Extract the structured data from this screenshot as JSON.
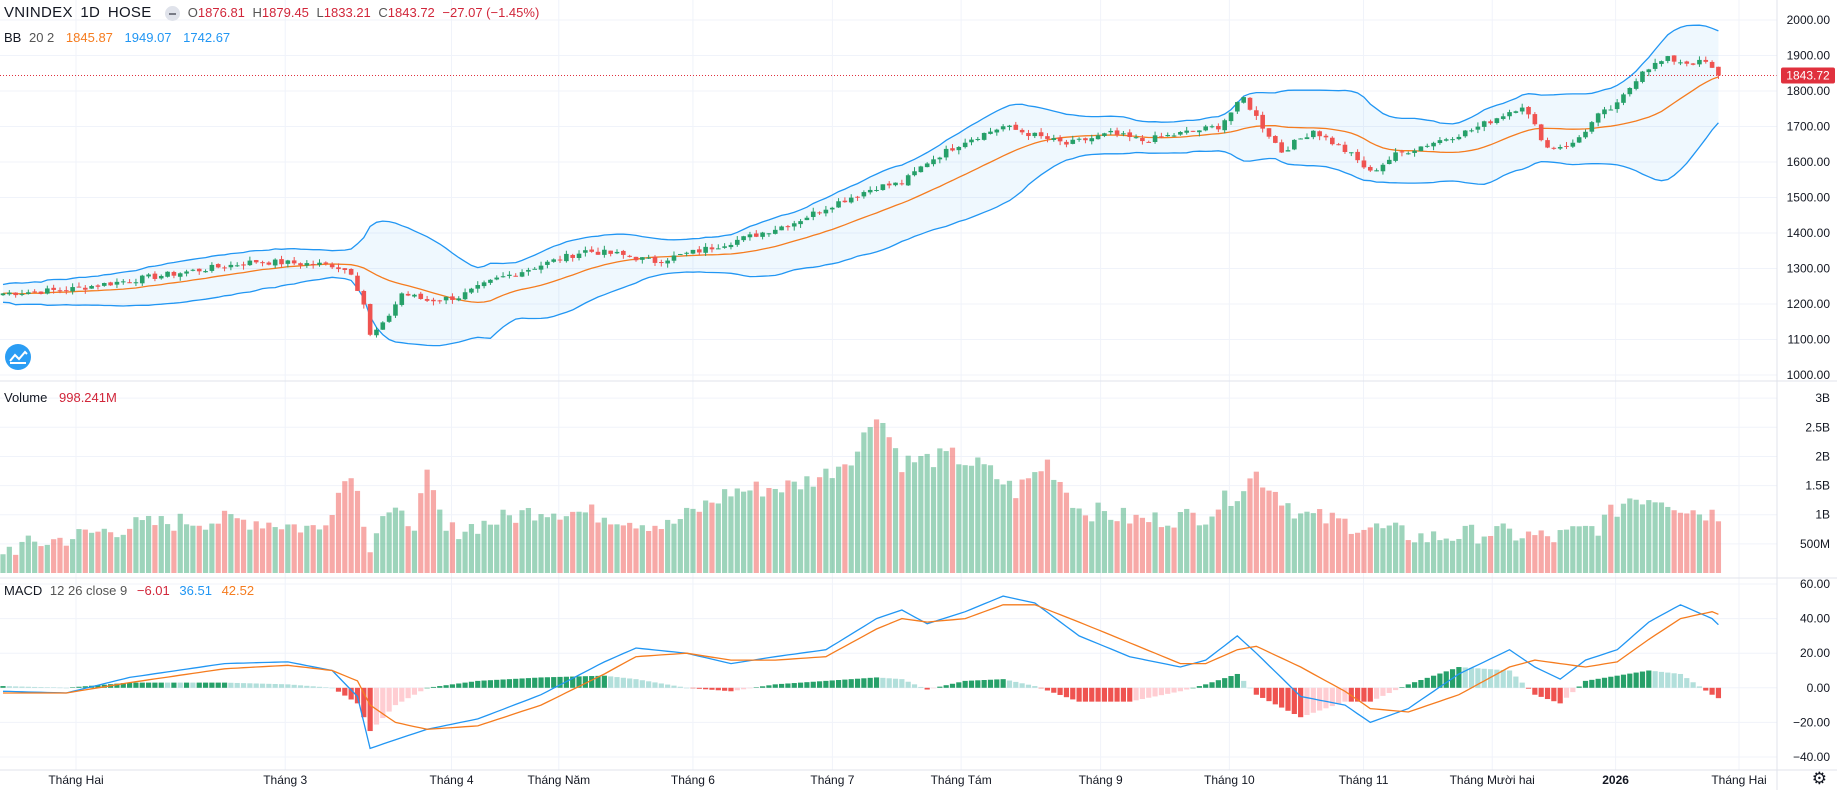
{
  "header": {
    "symbol": "VNINDEX",
    "interval": "1D",
    "exchange": "HOSE",
    "open_label": "O",
    "open": "1876.81",
    "high_label": "H",
    "high": "1879.45",
    "low_label": "L",
    "low": "1833.21",
    "close_label": "C",
    "close": "1843.72",
    "change": "−27.07 (−1.45%)"
  },
  "bb_legend": {
    "name": "BB",
    "params": "20 2",
    "basis": "1845.87",
    "upper": "1949.07",
    "lower": "1742.67"
  },
  "volume_legend": {
    "name": "Volume",
    "value": "998.241M"
  },
  "macd_legend": {
    "name": "MACD",
    "params": "12 26 close 9",
    "hist": "−6.01",
    "macd": "36.51",
    "signal": "42.52"
  },
  "price_tag": "1843.72",
  "colors": {
    "up": "#26a069",
    "down": "#ef5350",
    "bb_band": "#2196f3",
    "bb_basis": "#f57c1f",
    "macd": "#2196f3",
    "signal": "#f57c1f",
    "tag": "#e0313e"
  },
  "chart_data": {
    "type": "candlestick",
    "x_tick_labels": [
      "Tháng Hai",
      "Tháng 3",
      "Tháng 4",
      "Tháng Năm",
      "Tháng 6",
      "Tháng 7",
      "Tháng Tám",
      "Tháng 9",
      "Tháng 10",
      "Tháng 11",
      "Tháng Mười hai",
      "2026",
      "Tháng Hai"
    ],
    "price_axis": {
      "ticks": [
        "1000.00",
        "1100.00",
        "1200.00",
        "1300.00",
        "1400.00",
        "1500.00",
        "1600.00",
        "1700.00",
        "1800.00",
        "1900.00",
        "2000.00"
      ],
      "range": [
        1000,
        2000
      ]
    },
    "volume_axis": {
      "ticks": [
        "500M",
        "1B",
        "1.5B",
        "2B",
        "2.5B",
        "3B"
      ],
      "range": [
        0,
        3
      ]
    },
    "macd_axis": {
      "ticks": [
        "−40.00",
        "−20.00",
        "0.00",
        "20.00",
        "40.00",
        "60.00"
      ],
      "range": [
        -40,
        60
      ]
    },
    "price_keypoints": [
      [
        0,
        1230
      ],
      [
        10,
        1240
      ],
      [
        25,
        1280
      ],
      [
        40,
        1320
      ],
      [
        52,
        1310
      ],
      [
        55,
        1290
      ],
      [
        57,
        1200
      ],
      [
        58,
        1110
      ],
      [
        60,
        1140
      ],
      [
        63,
        1230
      ],
      [
        67,
        1210
      ],
      [
        72,
        1220
      ],
      [
        78,
        1270
      ],
      [
        85,
        1310
      ],
      [
        92,
        1350
      ],
      [
        97,
        1340
      ],
      [
        103,
        1320
      ],
      [
        110,
        1350
      ],
      [
        118,
        1390
      ],
      [
        125,
        1430
      ],
      [
        131,
        1480
      ],
      [
        138,
        1530
      ],
      [
        142,
        1540
      ],
      [
        146,
        1600
      ],
      [
        152,
        1660
      ],
      [
        158,
        1700
      ],
      [
        162,
        1680
      ],
      [
        168,
        1650
      ],
      [
        175,
        1680
      ],
      [
        180,
        1660
      ],
      [
        186,
        1680
      ],
      [
        192,
        1700
      ],
      [
        196,
        1780
      ],
      [
        199,
        1700
      ],
      [
        202,
        1630
      ],
      [
        207,
        1690
      ],
      [
        213,
        1620
      ],
      [
        216,
        1570
      ],
      [
        220,
        1620
      ],
      [
        225,
        1650
      ],
      [
        232,
        1690
      ],
      [
        240,
        1760
      ],
      [
        244,
        1640
      ],
      [
        248,
        1650
      ],
      [
        252,
        1730
      ],
      [
        255,
        1760
      ],
      [
        259,
        1860
      ],
      [
        263,
        1890
      ],
      [
        266,
        1880
      ],
      [
        269,
        1880
      ],
      [
        271,
        1840
      ]
    ],
    "volume_keypoints_B": [
      [
        0,
        0.4
      ],
      [
        10,
        0.6
      ],
      [
        20,
        0.8
      ],
      [
        30,
        0.9
      ],
      [
        40,
        0.9
      ],
      [
        50,
        0.75
      ],
      [
        55,
        1.8
      ],
      [
        58,
        0.5
      ],
      [
        60,
        1.0
      ],
      [
        65,
        0.9
      ],
      [
        67,
        1.6
      ],
      [
        70,
        0.7
      ],
      [
        78,
        0.9
      ],
      [
        85,
        1.1
      ],
      [
        95,
        1.0
      ],
      [
        105,
        0.8
      ],
      [
        115,
        1.4
      ],
      [
        125,
        1.5
      ],
      [
        130,
        1.7
      ],
      [
        135,
        2.1
      ],
      [
        138,
        2.8
      ],
      [
        142,
        1.9
      ],
      [
        150,
        2.0
      ],
      [
        155,
        1.8
      ],
      [
        160,
        1.4
      ],
      [
        165,
        1.9
      ],
      [
        170,
        1.1
      ],
      [
        180,
        0.9
      ],
      [
        190,
        1.0
      ],
      [
        195,
        1.4
      ],
      [
        198,
        1.7
      ],
      [
        205,
        1.0
      ],
      [
        215,
        0.8
      ],
      [
        225,
        0.6
      ],
      [
        235,
        0.7
      ],
      [
        245,
        0.6
      ],
      [
        252,
        0.8
      ],
      [
        257,
        1.3
      ],
      [
        262,
        1.3
      ],
      [
        266,
        1.1
      ],
      [
        271,
        1.0
      ]
    ],
    "macd_keypoints": [
      [
        0,
        -2
      ],
      [
        10,
        -3
      ],
      [
        20,
        6
      ],
      [
        35,
        14
      ],
      [
        45,
        15
      ],
      [
        52,
        10
      ],
      [
        56,
        -5
      ],
      [
        58,
        -35
      ],
      [
        62,
        -30
      ],
      [
        67,
        -24
      ],
      [
        75,
        -18
      ],
      [
        85,
        -4
      ],
      [
        95,
        15
      ],
      [
        100,
        23
      ],
      [
        108,
        20
      ],
      [
        115,
        14
      ],
      [
        122,
        18
      ],
      [
        130,
        22
      ],
      [
        138,
        40
      ],
      [
        142,
        45
      ],
      [
        146,
        37
      ],
      [
        152,
        44
      ],
      [
        158,
        53
      ],
      [
        163,
        49
      ],
      [
        170,
        30
      ],
      [
        178,
        18
      ],
      [
        186,
        12
      ],
      [
        190,
        16
      ],
      [
        195,
        30
      ],
      [
        198,
        20
      ],
      [
        205,
        -5
      ],
      [
        212,
        -10
      ],
      [
        216,
        -20
      ],
      [
        222,
        -12
      ],
      [
        230,
        8
      ],
      [
        238,
        22
      ],
      [
        242,
        12
      ],
      [
        246,
        5
      ],
      [
        250,
        16
      ],
      [
        255,
        22
      ],
      [
        260,
        38
      ],
      [
        265,
        48
      ],
      [
        270,
        40
      ],
      [
        271,
        36.5
      ]
    ],
    "signal_keypoints": [
      [
        0,
        -3
      ],
      [
        10,
        -3
      ],
      [
        20,
        3
      ],
      [
        35,
        11
      ],
      [
        45,
        13
      ],
      [
        52,
        10
      ],
      [
        56,
        4
      ],
      [
        58,
        -10
      ],
      [
        62,
        -20
      ],
      [
        67,
        -24
      ],
      [
        75,
        -22
      ],
      [
        85,
        -10
      ],
      [
        95,
        8
      ],
      [
        100,
        18
      ],
      [
        108,
        20
      ],
      [
        115,
        16
      ],
      [
        122,
        16
      ],
      [
        130,
        18
      ],
      [
        138,
        34
      ],
      [
        142,
        40
      ],
      [
        146,
        38
      ],
      [
        152,
        40
      ],
      [
        158,
        48
      ],
      [
        163,
        48
      ],
      [
        170,
        38
      ],
      [
        178,
        26
      ],
      [
        186,
        14
      ],
      [
        190,
        14
      ],
      [
        195,
        22
      ],
      [
        198,
        24
      ],
      [
        205,
        12
      ],
      [
        212,
        -2
      ],
      [
        216,
        -12
      ],
      [
        222,
        -14
      ],
      [
        230,
        -4
      ],
      [
        238,
        12
      ],
      [
        242,
        16
      ],
      [
        246,
        14
      ],
      [
        250,
        12
      ],
      [
        255,
        15
      ],
      [
        260,
        28
      ],
      [
        265,
        40
      ],
      [
        270,
        44
      ],
      [
        271,
        42.5
      ]
    ]
  }
}
